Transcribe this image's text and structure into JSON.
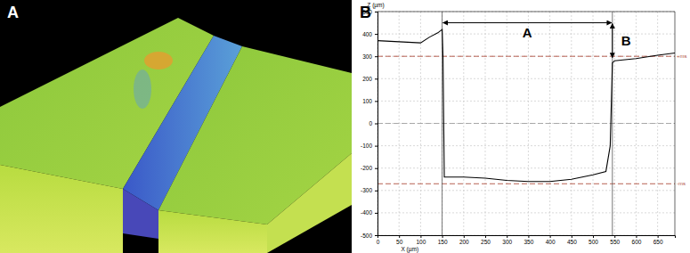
{
  "panel_labels": [
    "A",
    "B"
  ],
  "chart_data": {
    "type": "line",
    "x_label": "X (µm)",
    "y_label": "Z (µm)",
    "x": [
      0,
      50,
      100,
      120,
      140,
      150,
      152,
      155,
      200,
      250,
      300,
      350,
      400,
      450,
      500,
      530,
      540,
      545,
      550,
      600,
      650,
      690
    ],
    "values": [
      370,
      365,
      360,
      385,
      405,
      420,
      300,
      -240,
      -240,
      -245,
      -255,
      -260,
      -260,
      -250,
      -230,
      -215,
      -100,
      270,
      280,
      290,
      305,
      315
    ],
    "color": "#000000",
    "xlim": [
      0,
      690
    ],
    "xticks": [
      0,
      50,
      100,
      150,
      200,
      250,
      300,
      350,
      400,
      450,
      500,
      550,
      600,
      650
    ],
    "ylim": [
      -500,
      500
    ],
    "yticks": [
      -500,
      -400,
      -300,
      -200,
      -100,
      0,
      100,
      200,
      300,
      400,
      500
    ],
    "grid": true,
    "reference_lines": [
      {
        "value": 300,
        "label": "+ms",
        "color": "#b05040"
      },
      {
        "value": 0,
        "color": "#a0a0a0"
      },
      {
        "value": -270,
        "label": "-ms",
        "color": "#b05040"
      }
    ],
    "cursor_x": [
      150,
      545
    ],
    "annotations": [
      {
        "label": "A",
        "x": [
          150,
          545
        ],
        "y": 450
      },
      {
        "label": "B",
        "x": 545,
        "y": [
          450,
          290
        ]
      }
    ]
  }
}
